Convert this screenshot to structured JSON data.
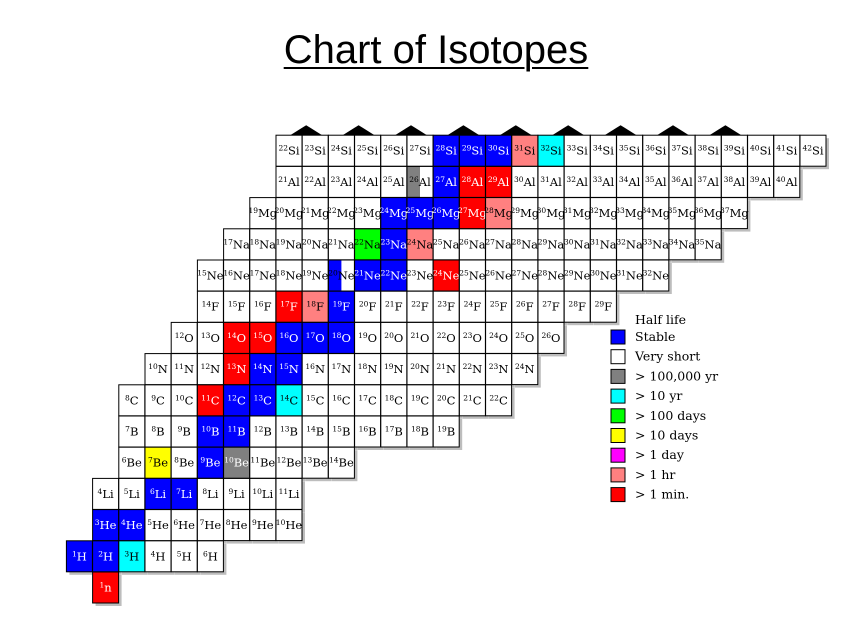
{
  "title": "Chart of Isotopes",
  "colors": {
    "stable": "#0000ff",
    "very_short": "#ffffff",
    "y100000": "#808080",
    "y10": "#00ffff",
    "d100": "#00ff00",
    "d10": "#ffff00",
    "d1": "#ff00ff",
    "h1": "#ff8080",
    "m1": "#ff0000"
  },
  "legend": {
    "title": "Half life",
    "items": [
      {
        "key": "stable",
        "label": "Stable"
      },
      {
        "key": "very_short",
        "label": "Very short"
      },
      {
        "key": "y100000",
        "label": "> 100,000 yr"
      },
      {
        "key": "y10",
        "label": "> 10 yr"
      },
      {
        "key": "d100",
        "label": "> 100 days"
      },
      {
        "key": "d10",
        "label": "> 10 days"
      },
      {
        "key": "d1",
        "label": "> 1 day"
      },
      {
        "key": "h1",
        "label": "> 1 hr"
      },
      {
        "key": "m1",
        "label": "> 1 min."
      }
    ]
  },
  "rows": [
    {
      "symbol": "n",
      "first_col": 3,
      "cells": [
        {
          "a": 1,
          "c": "m1"
        }
      ]
    },
    {
      "symbol": "H",
      "first_col": 2,
      "cells": [
        {
          "a": 1,
          "c": "stable"
        },
        {
          "a": 2,
          "c": "stable"
        },
        {
          "a": 3,
          "c": "y10"
        },
        {
          "a": 4
        },
        {
          "a": 5
        },
        {
          "a": 6
        }
      ]
    },
    {
      "symbol": "He",
      "first_col": 3,
      "cells": [
        {
          "a": 3,
          "c": "stable"
        },
        {
          "a": 4,
          "c": "stable"
        },
        {
          "a": 5
        },
        {
          "a": 6
        },
        {
          "a": 7
        },
        {
          "a": 8
        },
        {
          "a": 9
        },
        {
          "a": 10
        }
      ]
    },
    {
      "symbol": "Li",
      "first_col": 3,
      "cells": [
        {
          "a": 4
        },
        {
          "a": 5
        },
        {
          "a": 6,
          "c": "stable"
        },
        {
          "a": 7,
          "c": "stable"
        },
        {
          "a": 8
        },
        {
          "a": 9
        },
        {
          "a": 10
        },
        {
          "a": 11
        }
      ]
    },
    {
      "symbol": "Be",
      "first_col": 4,
      "cells": [
        {
          "a": 6
        },
        {
          "a": 7,
          "c": "d10"
        },
        {
          "a": 8
        },
        {
          "a": 9,
          "c": "stable"
        },
        {
          "a": 10,
          "c": "y100000"
        },
        {
          "a": 11
        },
        {
          "a": 12
        },
        {
          "a": 13
        },
        {
          "a": 14
        }
      ]
    },
    {
      "symbol": "B",
      "first_col": 4,
      "cells": [
        {
          "a": 7
        },
        {
          "a": 8
        },
        {
          "a": 9
        },
        {
          "a": 10,
          "c": "stable"
        },
        {
          "a": 11,
          "c": "stable"
        },
        {
          "a": 12
        },
        {
          "a": 13
        },
        {
          "a": 14
        },
        {
          "a": 15
        },
        {
          "a": 16
        },
        {
          "a": 17
        },
        {
          "a": 18
        },
        {
          "a": 19
        }
      ]
    },
    {
      "symbol": "C",
      "first_col": 4,
      "cells": [
        {
          "a": 8
        },
        {
          "a": 9
        },
        {
          "a": 10
        },
        {
          "a": 11,
          "c": "m1"
        },
        {
          "a": 12,
          "c": "stable"
        },
        {
          "a": 13,
          "c": "stable"
        },
        {
          "a": 14,
          "c": "y10"
        },
        {
          "a": 15
        },
        {
          "a": 16
        },
        {
          "a": 17
        },
        {
          "a": 18
        },
        {
          "a": 19
        },
        {
          "a": 20
        },
        {
          "a": 21
        },
        {
          "a": 22
        }
      ]
    },
    {
      "symbol": "N",
      "first_col": 5,
      "cells": [
        {
          "a": 10
        },
        {
          "a": 11
        },
        {
          "a": 12
        },
        {
          "a": 13,
          "c": "m1"
        },
        {
          "a": 14,
          "c": "stable"
        },
        {
          "a": 15,
          "c": "stable"
        },
        {
          "a": 16
        },
        {
          "a": 17
        },
        {
          "a": 18
        },
        {
          "a": 19
        },
        {
          "a": 20
        },
        {
          "a": 21
        },
        {
          "a": 22
        },
        {
          "a": 23
        },
        {
          "a": 24
        }
      ]
    },
    {
      "symbol": "O",
      "first_col": 6,
      "cells": [
        {
          "a": 12
        },
        {
          "a": 13
        },
        {
          "a": 14,
          "c": "m1"
        },
        {
          "a": 15,
          "c": "m1"
        },
        {
          "a": 16,
          "c": "stable"
        },
        {
          "a": 17,
          "c": "stable"
        },
        {
          "a": 18,
          "c": "stable"
        },
        {
          "a": 19
        },
        {
          "a": 20
        },
        {
          "a": 21
        },
        {
          "a": 22
        },
        {
          "a": 23
        },
        {
          "a": 24
        },
        {
          "a": 25
        },
        {
          "a": 26
        }
      ]
    },
    {
      "symbol": "F",
      "first_col": 7,
      "cells": [
        {
          "a": 14
        },
        {
          "a": 15
        },
        {
          "a": 16
        },
        {
          "a": 17,
          "c": "m1"
        },
        {
          "a": 18,
          "c": "h1"
        },
        {
          "a": 19,
          "c": "stable"
        },
        {
          "a": 20
        },
        {
          "a": 21
        },
        {
          "a": 22
        },
        {
          "a": 23
        },
        {
          "a": 24
        },
        {
          "a": 25
        },
        {
          "a": 26
        },
        {
          "a": 27
        },
        {
          "a": 28
        },
        {
          "a": 29
        }
      ]
    },
    {
      "symbol": "Ne",
      "first_col": 7,
      "cells": [
        {
          "a": 15
        },
        {
          "a": 16
        },
        {
          "a": 17
        },
        {
          "a": 18
        },
        {
          "a": 19
        },
        {
          "a": 20,
          "c": "stable",
          "split": true
        },
        {
          "a": 21,
          "c": "stable"
        },
        {
          "a": 22,
          "c": "stable"
        },
        {
          "a": 23
        },
        {
          "a": 24,
          "c": "m1"
        },
        {
          "a": 25
        },
        {
          "a": 26
        },
        {
          "a": 27
        },
        {
          "a": 28
        },
        {
          "a": 29
        },
        {
          "a": 30
        },
        {
          "a": 31
        },
        {
          "a": 32
        }
      ]
    },
    {
      "symbol": "Na",
      "first_col": 8,
      "cells": [
        {
          "a": 17
        },
        {
          "a": 18
        },
        {
          "a": 19
        },
        {
          "a": 20
        },
        {
          "a": 21
        },
        {
          "a": 22,
          "c": "d100"
        },
        {
          "a": 23,
          "c": "stable"
        },
        {
          "a": 24,
          "c": "h1"
        },
        {
          "a": 25
        },
        {
          "a": 26
        },
        {
          "a": 27
        },
        {
          "a": 28
        },
        {
          "a": 29
        },
        {
          "a": 30
        },
        {
          "a": 31
        },
        {
          "a": 32
        },
        {
          "a": 33
        },
        {
          "a": 34
        },
        {
          "a": 35
        }
      ]
    },
    {
      "symbol": "Mg",
      "first_col": 9,
      "cells": [
        {
          "a": 19
        },
        {
          "a": 20
        },
        {
          "a": 21
        },
        {
          "a": 22
        },
        {
          "a": 23
        },
        {
          "a": 24,
          "c": "stable"
        },
        {
          "a": 25,
          "c": "stable"
        },
        {
          "a": 26,
          "c": "stable"
        },
        {
          "a": 27,
          "c": "m1"
        },
        {
          "a": 28,
          "c": "h1"
        },
        {
          "a": 29
        },
        {
          "a": 30
        },
        {
          "a": 31
        },
        {
          "a": 32
        },
        {
          "a": 33
        },
        {
          "a": 34
        },
        {
          "a": 35
        },
        {
          "a": 36
        },
        {
          "a": 37
        }
      ]
    },
    {
      "symbol": "Al",
      "first_col": 10,
      "cells": [
        {
          "a": 21
        },
        {
          "a": 22
        },
        {
          "a": 23
        },
        {
          "a": 24
        },
        {
          "a": 25
        },
        {
          "a": 26,
          "c": "y100000",
          "split": true
        },
        {
          "a": 27,
          "c": "stable"
        },
        {
          "a": 28,
          "c": "m1"
        },
        {
          "a": 29,
          "c": "m1"
        },
        {
          "a": 30
        },
        {
          "a": 31
        },
        {
          "a": 32
        },
        {
          "a": 33
        },
        {
          "a": 34
        },
        {
          "a": 35
        },
        {
          "a": 36
        },
        {
          "a": 37
        },
        {
          "a": 38
        },
        {
          "a": 39
        },
        {
          "a": 40
        }
      ]
    },
    {
      "symbol": "Si",
      "first_col": 10,
      "cells": [
        {
          "a": 22
        },
        {
          "a": 23
        },
        {
          "a": 24
        },
        {
          "a": 25
        },
        {
          "a": 26
        },
        {
          "a": 27
        },
        {
          "a": 28,
          "c": "stable"
        },
        {
          "a": 29,
          "c": "stable"
        },
        {
          "a": 30,
          "c": "stable"
        },
        {
          "a": 31,
          "c": "h1"
        },
        {
          "a": 32,
          "c": "y10"
        },
        {
          "a": 33
        },
        {
          "a": 34
        },
        {
          "a": 35
        },
        {
          "a": 36
        },
        {
          "a": 37
        },
        {
          "a": 38
        },
        {
          "a": 39
        },
        {
          "a": 40
        },
        {
          "a": 41
        },
        {
          "a": 42
        }
      ]
    }
  ]
}
